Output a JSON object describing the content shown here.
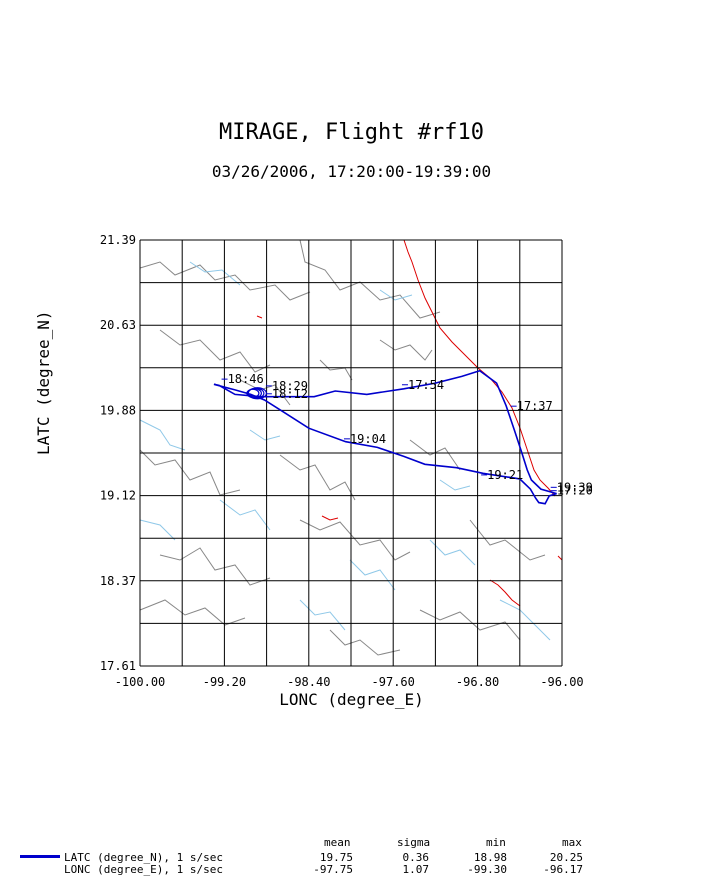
{
  "title": "MIRAGE, Flight #rf10",
  "subtitle": "03/26/2006, 17:20:00-19:39:00",
  "chart_data": {
    "type": "map",
    "xlabel": "LONC (degree_E)",
    "ylabel": "LATC (degree_N)",
    "xlim": [
      -100.0,
      -96.0
    ],
    "ylim": [
      17.61,
      21.39
    ],
    "x_tick_labels": [
      "-100.00",
      "-99.20",
      "-98.40",
      "-97.60",
      "-96.80",
      "-96.00"
    ],
    "y_tick_labels": [
      "21.39",
      "20.63",
      "19.88",
      "19.12",
      "18.37",
      "17.61"
    ],
    "grid": true,
    "grid_lines_x": 10,
    "grid_lines_y": 10,
    "flight_color": "#0000cc",
    "coast_color": "#dd0000",
    "border_color": "#888888",
    "river_color": "#8fc8e8",
    "time_labels": [
      {
        "text": "18:46",
        "lon": -99.17,
        "lat": 20.12
      },
      {
        "text": "18:29",
        "lon": -98.75,
        "lat": 20.06
      },
      {
        "text": "18:12",
        "lon": -98.75,
        "lat": 19.99
      },
      {
        "text": "17:54",
        "lon": -97.46,
        "lat": 20.07
      },
      {
        "text": "17:37",
        "lon": -96.43,
        "lat": 19.88
      },
      {
        "text": "19:04",
        "lon": -98.01,
        "lat": 19.59
      },
      {
        "text": "19:21",
        "lon": -96.71,
        "lat": 19.27
      },
      {
        "text": "19:39",
        "lon": -96.05,
        "lat": 19.16
      },
      {
        "text": "17:20",
        "lon": -96.05,
        "lat": 19.13
      }
    ],
    "track": [
      [
        -96.05,
        19.14
      ],
      [
        -96.2,
        19.18
      ],
      [
        -96.29,
        19.26
      ],
      [
        -96.33,
        19.35
      ],
      [
        -96.38,
        19.5
      ],
      [
        -96.45,
        19.7
      ],
      [
        -96.53,
        19.92
      ],
      [
        -96.62,
        20.12
      ],
      [
        -96.78,
        20.23
      ],
      [
        -96.95,
        20.18
      ],
      [
        -97.2,
        20.12
      ],
      [
        -97.5,
        20.07
      ],
      [
        -97.85,
        20.02
      ],
      [
        -98.15,
        20.05
      ],
      [
        -98.35,
        20.0
      ],
      [
        -98.6,
        20.0
      ],
      [
        -98.85,
        20.0
      ],
      [
        -99.1,
        20.02
      ],
      [
        -99.25,
        20.1
      ],
      [
        -99.3,
        20.11
      ],
      [
        -99.1,
        20.06
      ],
      [
        -98.95,
        20.02
      ],
      [
        -98.82,
        19.97
      ],
      [
        -98.65,
        19.87
      ],
      [
        -98.4,
        19.72
      ],
      [
        -98.05,
        19.6
      ],
      [
        -97.75,
        19.55
      ],
      [
        -97.5,
        19.47
      ],
      [
        -97.3,
        19.4
      ],
      [
        -97.0,
        19.37
      ],
      [
        -96.75,
        19.32
      ],
      [
        -96.4,
        19.27
      ],
      [
        -96.3,
        19.18
      ],
      [
        -96.25,
        19.1
      ],
      [
        -96.22,
        19.06
      ],
      [
        -96.16,
        19.05
      ],
      [
        -96.12,
        19.12
      ],
      [
        -96.05,
        19.14
      ]
    ],
    "series": [
      {
        "name": "LATC (degree_N), 1 s/sec"
      },
      {
        "name": "LONC (degree_E), 1 s/sec"
      }
    ]
  },
  "stats": {
    "headers": {
      "mean": "mean",
      "sigma": "sigma",
      "min": "min",
      "max": "max"
    },
    "rows": [
      {
        "label": "LATC (degree_N), 1 s/sec",
        "mean": "19.75",
        "sigma": "0.36",
        "min": "18.98",
        "max": "20.25"
      },
      {
        "label": "LONC (degree_E), 1 s/sec",
        "mean": "-97.75",
        "sigma": "1.07",
        "min": "-99.30",
        "max": "-96.17"
      }
    ]
  }
}
